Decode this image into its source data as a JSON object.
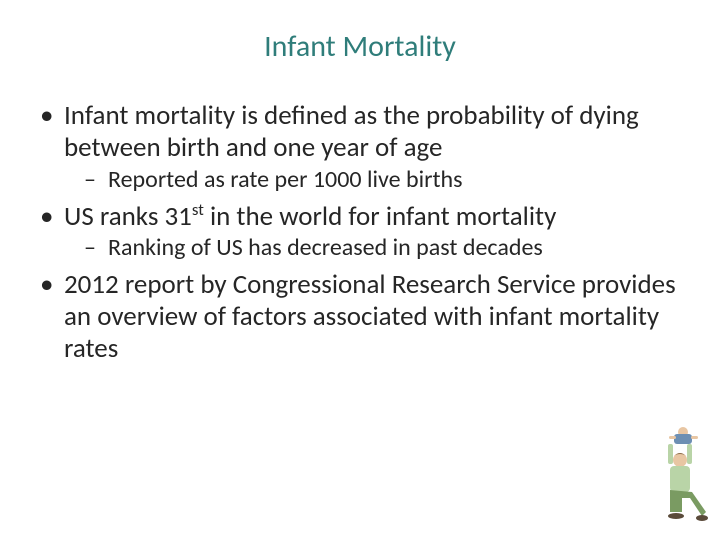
{
  "slide": {
    "title": "Infant Mortality",
    "title_color": "#2f7d7a",
    "body_color": "#262626",
    "bullets": [
      {
        "text": "Infant mortality is defined as the probability of dying between birth and one year of age",
        "sub": [
          {
            "text": "Reported as rate per 1000 live births"
          }
        ]
      },
      {
        "html": "US ranks 31<sup>st</sup> in the world for infant mortality",
        "sub": [
          {
            "text": "Ranking of US has decreased in past decades"
          }
        ]
      },
      {
        "text": "2012 report by Congressional Research Service provides an overview of factors associated with infant mortality rates",
        "sub": []
      }
    ],
    "illustration": {
      "adult_shirt": "#b9d4a7",
      "adult_pants": "#7a9b62",
      "skin": "#e8c6a3",
      "hair": "#8a6b4a",
      "child_outfit": "#6d8fb3"
    }
  }
}
